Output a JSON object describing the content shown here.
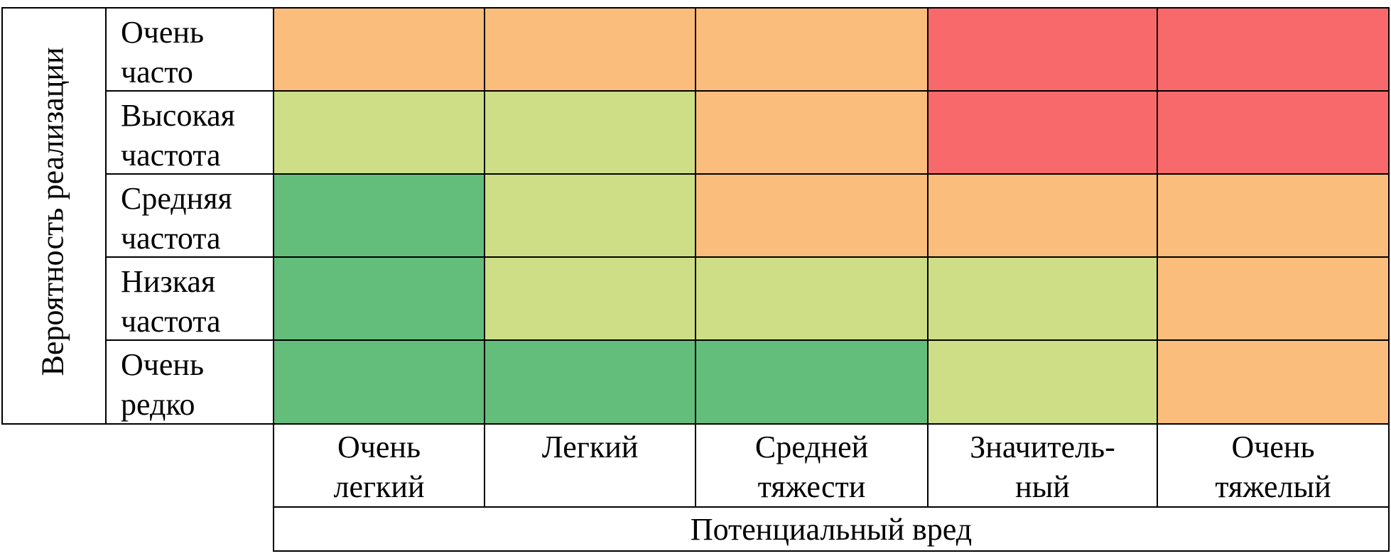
{
  "y_axis_title": "Вероятность реализации",
  "x_axis_title": "Потенциальный вред",
  "rows": [
    {
      "line1": "Очень",
      "line2": "часто"
    },
    {
      "line1": "Высокая",
      "line2": "частота"
    },
    {
      "line1": "Средняя",
      "line2": "частота"
    },
    {
      "line1": "Низкая",
      "line2": "частота"
    },
    {
      "line1": "Очень",
      "line2": "редко"
    }
  ],
  "columns": [
    {
      "line1": "Очень",
      "line2": "легкий"
    },
    {
      "line1": "Легкий",
      "line2": ""
    },
    {
      "line1": "Средней",
      "line2": "тяжести"
    },
    {
      "line1": "Значитель-",
      "line2": "ный"
    },
    {
      "line1": "Очень",
      "line2": "тяжелый"
    }
  ],
  "colors": {
    "red": "#F8696B",
    "orange": "#FBBD7B",
    "yellow_green": "#CDDE87",
    "green": "#63BE7B"
  },
  "grid": [
    [
      "orange",
      "orange",
      "orange",
      "red",
      "red"
    ],
    [
      "yellow_green",
      "yellow_green",
      "orange",
      "red",
      "red"
    ],
    [
      "green",
      "yellow_green",
      "orange",
      "orange",
      "orange"
    ],
    [
      "green",
      "yellow_green",
      "yellow_green",
      "yellow_green",
      "orange"
    ],
    [
      "green",
      "green",
      "green",
      "yellow_green",
      "orange"
    ]
  ]
}
